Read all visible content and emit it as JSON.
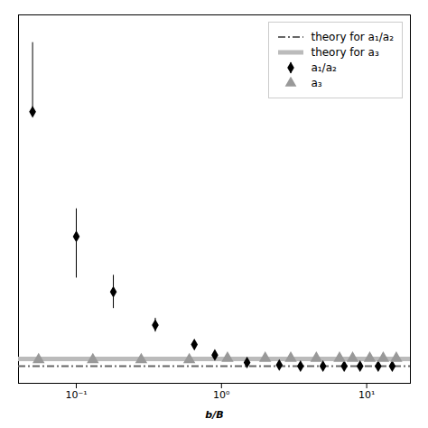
{
  "chart_data": {
    "type": "scatter",
    "xlabel": "b/B",
    "log": "x",
    "xlim": [
      0.04,
      20
    ],
    "xticks": [
      {
        "value": 0.1,
        "label": "10⁻¹"
      },
      {
        "value": 1,
        "label": "10⁰"
      },
      {
        "value": 10,
        "label": "10¹"
      }
    ],
    "ylim": [
      -0.3,
      13.0
    ],
    "tick_labels": "x",
    "grid": false,
    "legend": "upper right",
    "series": [
      {
        "name": "theory for a₁/a₂",
        "type": "hline",
        "y": 0.32,
        "color": "#666666",
        "line_style": "dashdot"
      },
      {
        "name": "theory for a₃",
        "type": "hline",
        "y": 0.58,
        "color": "#bbbbbb",
        "line_style": "solid"
      },
      {
        "name": "a₁/a₂",
        "type": "scatter",
        "color": "black",
        "marker": "diamond",
        "x": [
          0.05,
          0.1,
          0.18,
          0.35,
          0.65,
          0.9,
          1.5,
          2.5,
          3.5,
          5.0,
          7.0,
          9.0,
          12.0,
          15.0
        ],
        "values": [
          9.5,
          5.0,
          3.0,
          1.8,
          1.1,
          0.72,
          0.45,
          0.36,
          0.32,
          0.32,
          0.32,
          0.32,
          0.32,
          0.32
        ],
        "error_low": [
          0.0,
          1.5,
          0.6,
          0.25,
          0.15,
          0.1,
          0.07,
          0.04,
          0.03,
          0.03,
          0.03,
          0.03,
          0.03,
          0.03
        ],
        "error_high": [
          2.5,
          1.0,
          0.6,
          0.25,
          0.15,
          0.1,
          0.07,
          0.04,
          0.03,
          0.03,
          0.03,
          0.03,
          0.03,
          0.03
        ]
      },
      {
        "name": "a₃",
        "type": "scatter",
        "color": "#999999",
        "marker": "triangle",
        "x": [
          0.055,
          0.13,
          0.28,
          0.6,
          1.1,
          2.0,
          3.0,
          4.5,
          6.5,
          8.0,
          10.5,
          13.0,
          16.0
        ],
        "values": [
          0.55,
          0.55,
          0.55,
          0.55,
          0.6,
          0.6,
          0.6,
          0.6,
          0.6,
          0.6,
          0.6,
          0.6,
          0.6
        ]
      }
    ]
  }
}
